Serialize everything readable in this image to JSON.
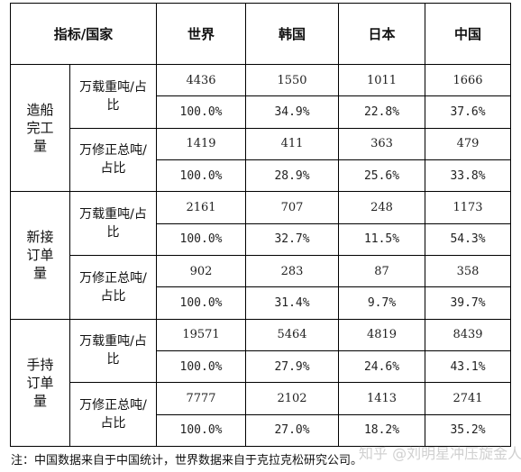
{
  "header": {
    "indicator_country": "指标/国家",
    "world": "世界",
    "korea": "韩国",
    "japan": "日本",
    "china": "中国"
  },
  "metrics": [
    {
      "name": "造船完工量",
      "units": [
        {
          "label": "万载重吨/占比",
          "values": [
            "4436",
            "1550",
            "1011",
            "1666"
          ],
          "shares": [
            "100.0%",
            "34.9%",
            "22.8%",
            "37.6%"
          ]
        },
        {
          "label": "万修正总吨/占比",
          "values": [
            "1419",
            "411",
            "363",
            "479"
          ],
          "shares": [
            "100.0%",
            "28.9%",
            "25.6%",
            "33.8%"
          ]
        }
      ]
    },
    {
      "name": "新接订单量",
      "units": [
        {
          "label": "万载重吨/占比",
          "values": [
            "2161",
            "707",
            "248",
            "1173"
          ],
          "shares": [
            "100.0%",
            "32.7%",
            "11.5%",
            "54.3%"
          ]
        },
        {
          "label": "万修正总吨/占比",
          "values": [
            "902",
            "283",
            "87",
            "358"
          ],
          "shares": [
            "100.0%",
            "31.4%",
            "9.7%",
            "39.7%"
          ]
        }
      ]
    },
    {
      "name": "手持订单量",
      "units": [
        {
          "label": "万载重吨/占比",
          "values": [
            "19571",
            "5464",
            "4819",
            "8439"
          ],
          "shares": [
            "100.0%",
            "27.9%",
            "24.6%",
            "43.1%"
          ]
        },
        {
          "label": "万修正总吨/占比",
          "values": [
            "7777",
            "2102",
            "1413",
            "2741"
          ],
          "shares": [
            "100.0%",
            "27.0%",
            "18.2%",
            "35.2%"
          ]
        }
      ]
    }
  ],
  "note": "注：中国数据来自于中国统计，世界数据来自于克拉克松研究公司。",
  "watermark": "知乎 @刘明星冲压旋金人"
}
